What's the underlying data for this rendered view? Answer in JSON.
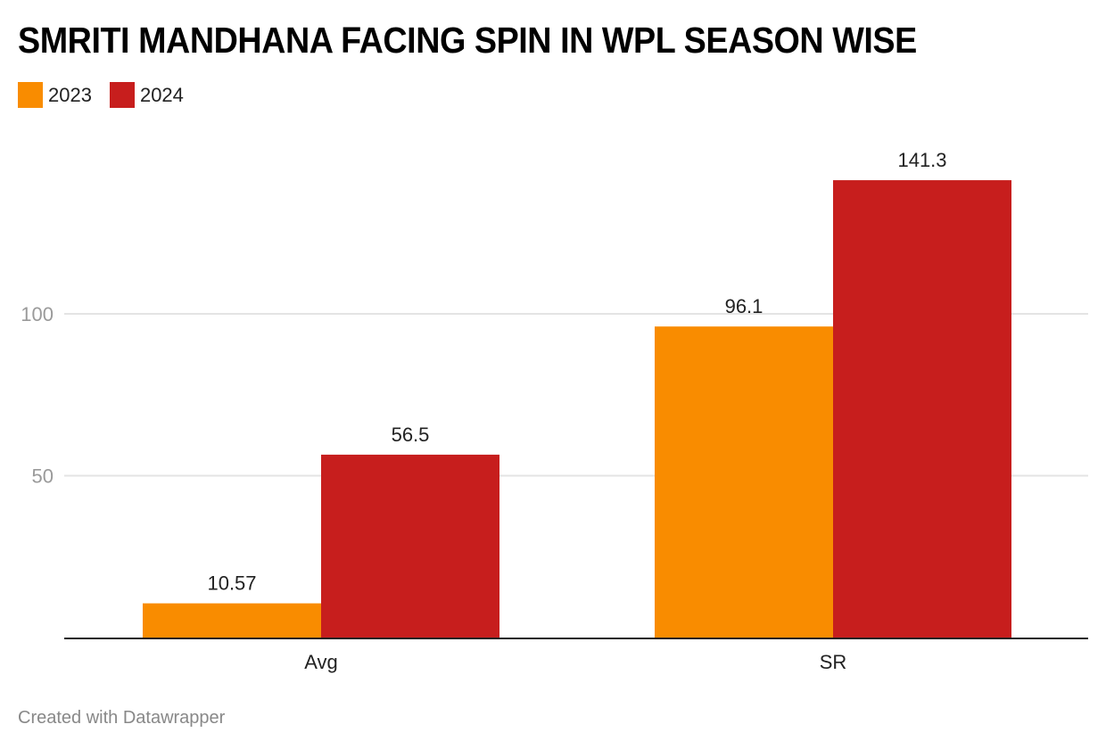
{
  "title": "SMRITI MANDHANA FACING SPIN IN WPL SEASON WISE",
  "footer": "Created with Datawrapper",
  "chart_data": {
    "type": "bar",
    "title": "SMRITI MANDHANA FACING SPIN IN WPL SEASON WISE",
    "categories": [
      "Avg",
      "SR"
    ],
    "series": [
      {
        "name": "2023",
        "color": "#f98c00",
        "values": [
          10.57,
          96.1
        ],
        "labels": [
          "10.57",
          "96.1"
        ]
      },
      {
        "name": "2024",
        "color": "#c71e1d",
        "values": [
          56.5,
          141.3
        ],
        "labels": [
          "56.5",
          "141.3"
        ]
      }
    ],
    "yticks": [
      50,
      100
    ],
    "ytick_labels": [
      "50",
      "100"
    ],
    "ylim": [
      0,
      150
    ],
    "grid": true,
    "legend": "top-left",
    "xlabel": "",
    "ylabel": ""
  }
}
